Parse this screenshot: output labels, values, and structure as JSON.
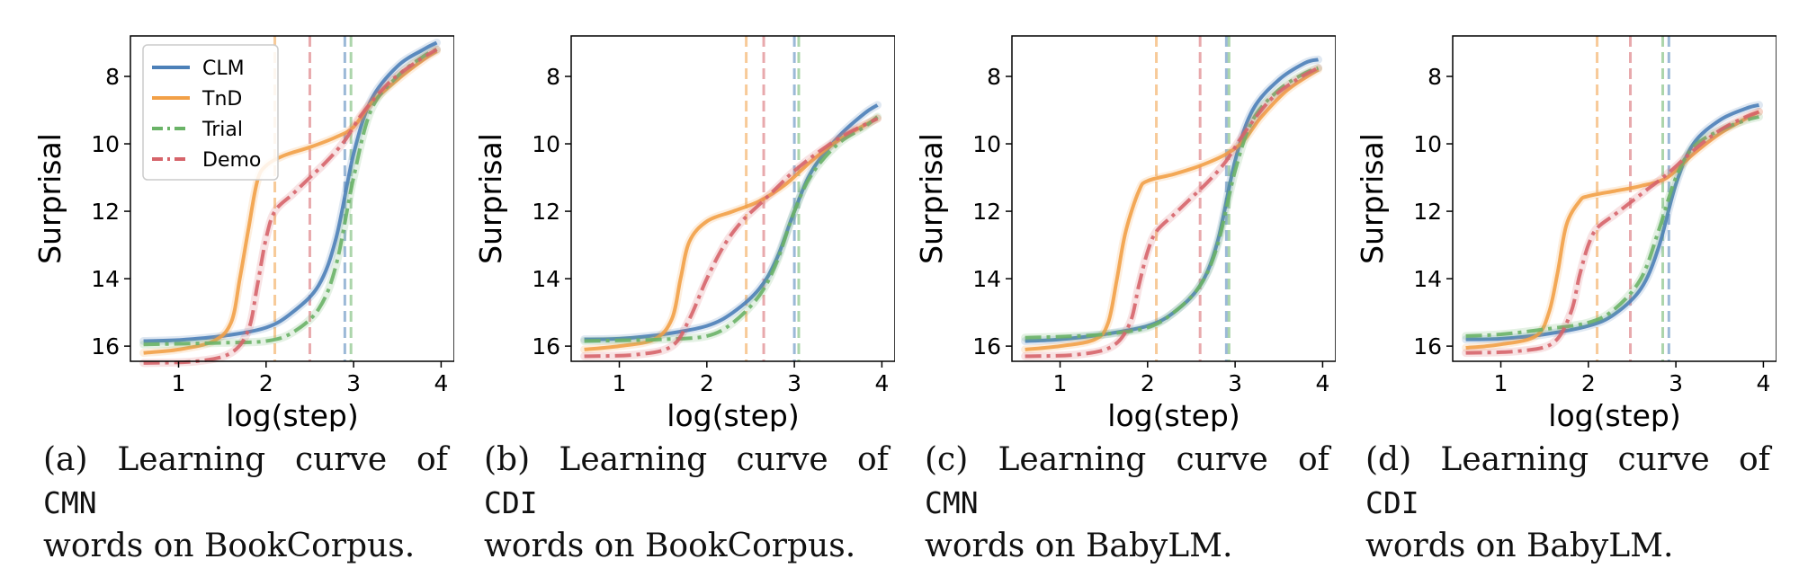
{
  "colors": {
    "CLM": "#4C80B8",
    "TnD": "#F2A047",
    "Trial": "#6AB367",
    "Demo": "#D6646A"
  },
  "chart_data": [
    {
      "type": "line",
      "xlabel": "log(step)",
      "ylabel": "Surprisal",
      "xlim": [
        0.45,
        4.15
      ],
      "ylim": [
        16.45,
        6.8
      ],
      "y_inverted": true,
      "xticks": [
        1,
        2,
        3,
        4
      ],
      "yticks": [
        8,
        10,
        12,
        14,
        16
      ],
      "legend": {
        "placement": "top-left",
        "entries": [
          "CLM",
          "TnD",
          "Trial",
          "Demo"
        ]
      },
      "caption": {
        "label": "(a) Learning curve of",
        "code": "CMN",
        "rest": "words on BookCorpus."
      },
      "vlines": [
        {
          "series": "TnD",
          "x": 2.1
        },
        {
          "series": "Demo",
          "x": 2.5
        },
        {
          "series": "CLM",
          "x": 2.9
        },
        {
          "series": "Trial",
          "x": 2.97
        }
      ],
      "series": [
        {
          "name": "CLM",
          "style": "solid",
          "points": [
            [
              0.6,
              15.85
            ],
            [
              1.0,
              15.82
            ],
            [
              1.5,
              15.7
            ],
            [
              2.0,
              15.45
            ],
            [
              2.3,
              15.0
            ],
            [
              2.6,
              14.2
            ],
            [
              2.8,
              12.8
            ],
            [
              3.0,
              10.3
            ],
            [
              3.2,
              8.7
            ],
            [
              3.5,
              7.7
            ],
            [
              3.8,
              7.2
            ],
            [
              3.95,
              7.0
            ]
          ]
        },
        {
          "name": "TnD",
          "style": "solid",
          "points": [
            [
              0.6,
              16.2
            ],
            [
              1.0,
              16.1
            ],
            [
              1.4,
              15.85
            ],
            [
              1.6,
              15.3
            ],
            [
              1.7,
              14.0
            ],
            [
              1.8,
              12.5
            ],
            [
              1.9,
              11.1
            ],
            [
              2.0,
              10.65
            ],
            [
              2.2,
              10.35
            ],
            [
              2.5,
              10.1
            ],
            [
              2.8,
              9.8
            ],
            [
              3.0,
              9.5
            ],
            [
              3.2,
              8.8
            ],
            [
              3.5,
              8.1
            ],
            [
              3.8,
              7.5
            ],
            [
              3.95,
              7.25
            ]
          ]
        },
        {
          "name": "Trial",
          "style": "dashdot",
          "points": [
            [
              0.6,
              15.95
            ],
            [
              1.0,
              15.93
            ],
            [
              1.5,
              15.9
            ],
            [
              2.0,
              15.85
            ],
            [
              2.3,
              15.6
            ],
            [
              2.6,
              14.9
            ],
            [
              2.8,
              13.6
            ],
            [
              3.0,
              11.0
            ],
            [
              3.2,
              9.0
            ],
            [
              3.5,
              8.0
            ],
            [
              3.8,
              7.4
            ],
            [
              3.95,
              7.2
            ]
          ]
        },
        {
          "name": "Demo",
          "style": "dashdot",
          "points": [
            [
              0.6,
              16.5
            ],
            [
              1.2,
              16.45
            ],
            [
              1.6,
              16.2
            ],
            [
              1.8,
              15.5
            ],
            [
              1.9,
              14.2
            ],
            [
              2.0,
              12.8
            ],
            [
              2.1,
              12.0
            ],
            [
              2.3,
              11.5
            ],
            [
              2.5,
              11.0
            ],
            [
              2.7,
              10.5
            ],
            [
              2.9,
              9.9
            ],
            [
              3.1,
              9.1
            ],
            [
              3.4,
              8.2
            ],
            [
              3.7,
              7.6
            ],
            [
              3.95,
              7.2
            ]
          ]
        }
      ]
    },
    {
      "type": "line",
      "xlabel": "log(step)",
      "ylabel": "Surprisal",
      "xlim": [
        0.45,
        4.15
      ],
      "ylim": [
        16.45,
        6.8
      ],
      "y_inverted": true,
      "xticks": [
        1,
        2,
        3,
        4
      ],
      "yticks": [
        8,
        10,
        12,
        14,
        16
      ],
      "caption": {
        "label": "(b) Learning curve of",
        "code": "CDI",
        "rest": "words on BookCorpus."
      },
      "vlines": [
        {
          "series": "TnD",
          "x": 2.45
        },
        {
          "series": "Demo",
          "x": 2.65
        },
        {
          "series": "CLM",
          "x": 3.0
        },
        {
          "series": "Trial",
          "x": 3.05
        }
      ],
      "series": [
        {
          "name": "CLM",
          "style": "solid",
          "points": [
            [
              0.6,
              15.8
            ],
            [
              1.0,
              15.78
            ],
            [
              1.5,
              15.65
            ],
            [
              2.0,
              15.4
            ],
            [
              2.3,
              15.0
            ],
            [
              2.6,
              14.3
            ],
            [
              2.8,
              13.4
            ],
            [
              3.0,
              12.0
            ],
            [
              3.2,
              10.8
            ],
            [
              3.5,
              9.8
            ],
            [
              3.8,
              9.1
            ],
            [
              3.95,
              8.85
            ]
          ]
        },
        {
          "name": "TnD",
          "style": "solid",
          "points": [
            [
              0.6,
              16.1
            ],
            [
              1.0,
              16.0
            ],
            [
              1.4,
              15.8
            ],
            [
              1.6,
              15.2
            ],
            [
              1.7,
              14.0
            ],
            [
              1.8,
              12.9
            ],
            [
              2.0,
              12.3
            ],
            [
              2.3,
              12.0
            ],
            [
              2.6,
              11.7
            ],
            [
              2.9,
              11.2
            ],
            [
              3.2,
              10.5
            ],
            [
              3.5,
              9.9
            ],
            [
              3.8,
              9.45
            ],
            [
              3.95,
              9.25
            ]
          ]
        },
        {
          "name": "Trial",
          "style": "dashdot",
          "points": [
            [
              0.6,
              15.85
            ],
            [
              1.0,
              15.83
            ],
            [
              1.5,
              15.8
            ],
            [
              2.0,
              15.7
            ],
            [
              2.3,
              15.3
            ],
            [
              2.6,
              14.5
            ],
            [
              2.8,
              13.5
            ],
            [
              3.0,
              12.0
            ],
            [
              3.2,
              10.9
            ],
            [
              3.5,
              10.0
            ],
            [
              3.8,
              9.5
            ],
            [
              3.95,
              9.2
            ]
          ]
        },
        {
          "name": "Demo",
          "style": "dashdot",
          "points": [
            [
              0.6,
              16.3
            ],
            [
              1.2,
              16.25
            ],
            [
              1.6,
              16.0
            ],
            [
              1.8,
              15.2
            ],
            [
              2.0,
              14.0
            ],
            [
              2.2,
              13.0
            ],
            [
              2.4,
              12.3
            ],
            [
              2.6,
              11.8
            ],
            [
              2.8,
              11.3
            ],
            [
              3.0,
              10.8
            ],
            [
              3.3,
              10.2
            ],
            [
              3.6,
              9.7
            ],
            [
              3.95,
              9.25
            ]
          ]
        }
      ]
    },
    {
      "type": "line",
      "xlabel": "log(step)",
      "ylabel": "Surprisal",
      "xlim": [
        0.45,
        4.15
      ],
      "ylim": [
        16.45,
        6.8
      ],
      "y_inverted": true,
      "xticks": [
        1,
        2,
        3,
        4
      ],
      "yticks": [
        8,
        10,
        12,
        14,
        16
      ],
      "caption": {
        "label": "(c) Learning curve of",
        "code": "CMN",
        "rest": "words on BabyLM."
      },
      "vlines": [
        {
          "series": "TnD",
          "x": 2.1
        },
        {
          "series": "Demo",
          "x": 2.6
        },
        {
          "series": "CLM",
          "x": 2.9
        },
        {
          "series": "Trial",
          "x": 2.93
        }
      ],
      "series": [
        {
          "name": "CLM",
          "style": "solid",
          "points": [
            [
              0.6,
              15.85
            ],
            [
              1.0,
              15.8
            ],
            [
              1.5,
              15.65
            ],
            [
              2.0,
              15.4
            ],
            [
              2.3,
              15.0
            ],
            [
              2.6,
              14.2
            ],
            [
              2.8,
              12.9
            ],
            [
              3.0,
              10.5
            ],
            [
              3.2,
              9.0
            ],
            [
              3.5,
              8.1
            ],
            [
              3.8,
              7.6
            ],
            [
              3.95,
              7.5
            ]
          ]
        },
        {
          "name": "TnD",
          "style": "solid",
          "points": [
            [
              0.6,
              16.1
            ],
            [
              1.0,
              16.0
            ],
            [
              1.4,
              15.8
            ],
            [
              1.55,
              15.3
            ],
            [
              1.65,
              14.0
            ],
            [
              1.75,
              12.6
            ],
            [
              1.9,
              11.4
            ],
            [
              2.0,
              11.1
            ],
            [
              2.3,
              10.9
            ],
            [
              2.6,
              10.65
            ],
            [
              2.9,
              10.3
            ],
            [
              3.1,
              9.9
            ],
            [
              3.3,
              9.2
            ],
            [
              3.6,
              8.4
            ],
            [
              3.95,
              7.8
            ]
          ]
        },
        {
          "name": "Trial",
          "style": "dashdot",
          "points": [
            [
              0.6,
              15.75
            ],
            [
              1.0,
              15.72
            ],
            [
              1.5,
              15.65
            ],
            [
              2.0,
              15.45
            ],
            [
              2.3,
              15.0
            ],
            [
              2.6,
              14.2
            ],
            [
              2.8,
              13.0
            ],
            [
              3.0,
              10.8
            ],
            [
              3.2,
              9.3
            ],
            [
              3.5,
              8.4
            ],
            [
              3.8,
              7.9
            ],
            [
              3.95,
              7.75
            ]
          ]
        },
        {
          "name": "Demo",
          "style": "dashdot",
          "points": [
            [
              0.6,
              16.3
            ],
            [
              1.2,
              16.25
            ],
            [
              1.6,
              16.0
            ],
            [
              1.8,
              15.3
            ],
            [
              1.9,
              14.2
            ],
            [
              2.0,
              13.2
            ],
            [
              2.1,
              12.6
            ],
            [
              2.3,
              12.1
            ],
            [
              2.5,
              11.6
            ],
            [
              2.7,
              11.1
            ],
            [
              2.9,
              10.5
            ],
            [
              3.1,
              9.7
            ],
            [
              3.4,
              8.7
            ],
            [
              3.7,
              8.1
            ],
            [
              3.95,
              7.75
            ]
          ]
        }
      ]
    },
    {
      "type": "line",
      "xlabel": "log(step)",
      "ylabel": "Surprisal",
      "xlim": [
        0.45,
        4.15
      ],
      "ylim": [
        16.45,
        6.8
      ],
      "y_inverted": true,
      "xticks": [
        1,
        2,
        3,
        4
      ],
      "yticks": [
        8,
        10,
        12,
        14,
        16
      ],
      "caption": {
        "label": "(d) Learning curve of",
        "code": "CDI",
        "rest": "words on BabyLM."
      },
      "vlines": [
        {
          "series": "TnD",
          "x": 2.1
        },
        {
          "series": "Demo",
          "x": 2.48
        },
        {
          "series": "Trial",
          "x": 2.85
        },
        {
          "series": "CLM",
          "x": 2.92
        }
      ],
      "series": [
        {
          "name": "CLM",
          "style": "solid",
          "points": [
            [
              0.6,
              15.8
            ],
            [
              1.0,
              15.78
            ],
            [
              1.5,
              15.65
            ],
            [
              2.0,
              15.4
            ],
            [
              2.3,
              15.05
            ],
            [
              2.6,
              14.3
            ],
            [
              2.8,
              13.1
            ],
            [
              3.0,
              11.2
            ],
            [
              3.2,
              10.0
            ],
            [
              3.5,
              9.3
            ],
            [
              3.8,
              8.95
            ],
            [
              3.95,
              8.85
            ]
          ]
        },
        {
          "name": "TnD",
          "style": "solid",
          "points": [
            [
              0.6,
              16.05
            ],
            [
              1.0,
              15.95
            ],
            [
              1.4,
              15.7
            ],
            [
              1.55,
              15.0
            ],
            [
              1.65,
              13.8
            ],
            [
              1.75,
              12.4
            ],
            [
              1.9,
              11.7
            ],
            [
              2.0,
              11.55
            ],
            [
              2.3,
              11.4
            ],
            [
              2.6,
              11.25
            ],
            [
              2.9,
              11.0
            ],
            [
              3.2,
              10.3
            ],
            [
              3.5,
              9.7
            ],
            [
              3.8,
              9.25
            ],
            [
              3.95,
              9.05
            ]
          ]
        },
        {
          "name": "Trial",
          "style": "dashdot",
          "points": [
            [
              0.6,
              15.7
            ],
            [
              1.0,
              15.65
            ],
            [
              1.5,
              15.5
            ],
            [
              2.0,
              15.3
            ],
            [
              2.3,
              14.9
            ],
            [
              2.6,
              14.0
            ],
            [
              2.8,
              12.6
            ],
            [
              3.0,
              11.0
            ],
            [
              3.2,
              10.1
            ],
            [
              3.5,
              9.6
            ],
            [
              3.8,
              9.3
            ],
            [
              3.95,
              9.2
            ]
          ]
        },
        {
          "name": "Demo",
          "style": "dashdot",
          "points": [
            [
              0.6,
              16.2
            ],
            [
              1.2,
              16.15
            ],
            [
              1.6,
              15.9
            ],
            [
              1.8,
              15.0
            ],
            [
              1.9,
              13.9
            ],
            [
              2.0,
              13.0
            ],
            [
              2.1,
              12.5
            ],
            [
              2.3,
              12.1
            ],
            [
              2.5,
              11.7
            ],
            [
              2.7,
              11.3
            ],
            [
              2.9,
              10.9
            ],
            [
              3.2,
              10.2
            ],
            [
              3.5,
              9.6
            ],
            [
              3.8,
              9.2
            ],
            [
              3.95,
              9.05
            ]
          ]
        }
      ]
    }
  ]
}
